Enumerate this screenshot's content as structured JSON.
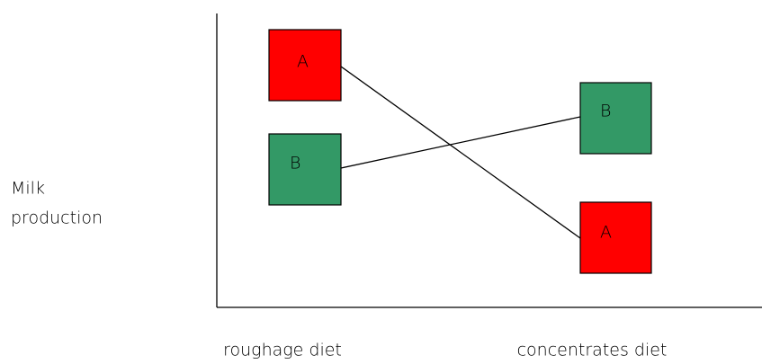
{
  "y_axis_label": [
    "Milk",
    "production"
  ],
  "x_categories": [
    "roughage diet",
    "concentrates diet"
  ],
  "nodes": [
    {
      "label": "A"
    },
    {
      "label": "B"
    },
    {
      "label": "B"
    },
    {
      "label": "A"
    }
  ]
}
